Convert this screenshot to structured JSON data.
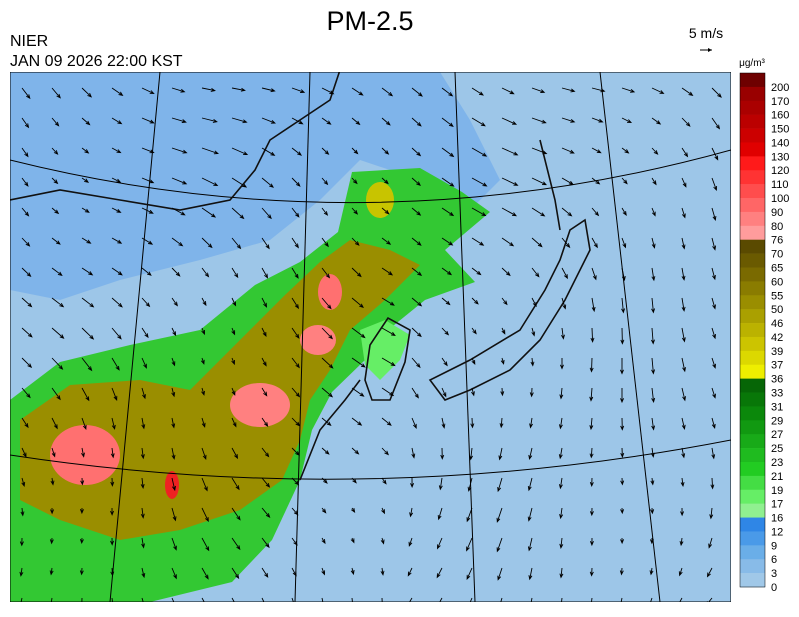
{
  "header": {
    "title": "PM-2.5",
    "org": "NIER",
    "datetime": "JAN 09 2026 22:00 KST",
    "scale_label": "5 m/s"
  },
  "colorbar": {
    "unit": "μg/m³",
    "labels": [
      "200",
      "170",
      "160",
      "150",
      "140",
      "130",
      "120",
      "110",
      "100",
      "90",
      "80",
      "76",
      "70",
      "65",
      "60",
      "55",
      "50",
      "46",
      "42",
      "39",
      "37",
      "36",
      "33",
      "31",
      "29",
      "27",
      "25",
      "23",
      "21",
      "19",
      "17",
      "16",
      "12",
      "9",
      "6",
      "3",
      "0"
    ],
    "colors": [
      "#6e0000",
      "#990000",
      "#aa0000",
      "#bb0000",
      "#cc0000",
      "#e00000",
      "#ff1a1a",
      "#ff3333",
      "#ff4d4d",
      "#ff6666",
      "#ff8080",
      "#ff9c9c",
      "#5a4a00",
      "#6a5a00",
      "#7a6a00",
      "#8a7c00",
      "#9a8e00",
      "#aaa000",
      "#bbb200",
      "#ccc400",
      "#dcd800",
      "#eeee00",
      "#066606",
      "#087708",
      "#0b880b",
      "#119911",
      "#18aa18",
      "#1fbb1f",
      "#22cc22",
      "#44dd44",
      "#66ee66",
      "#90f090",
      "#2f86e6",
      "#4a9ae8",
      "#6aaee8",
      "#88bbe8",
      "#a0c8e8"
    ]
  }
}
